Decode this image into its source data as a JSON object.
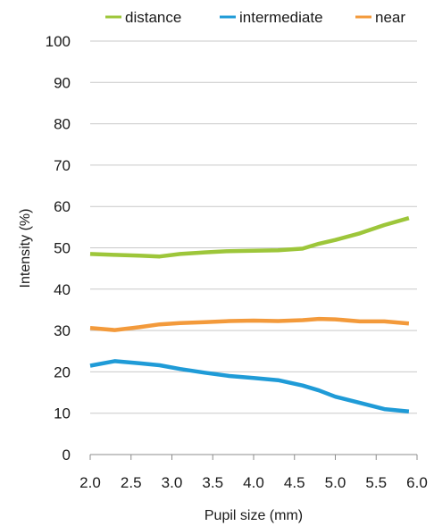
{
  "chart_data": {
    "type": "line",
    "title": "",
    "xlabel": "Pupil size (mm)",
    "ylabel": "Intensity (%)",
    "xlim": [
      2.0,
      6.0
    ],
    "ylim": [
      0,
      100
    ],
    "x_ticks": [
      "2.0",
      "2.5",
      "3.0",
      "3.5",
      "4.0",
      "4.5",
      "5.0",
      "5.5",
      "6.0"
    ],
    "y_ticks": [
      "0",
      "10",
      "20",
      "30",
      "40",
      "50",
      "60",
      "70",
      "80",
      "90",
      "100"
    ],
    "grid": "horizontal",
    "legend_position": "top",
    "series": [
      {
        "name": "distance",
        "color": "#9dc63a",
        "x": [
          2.0,
          2.3,
          2.6,
          2.85,
          3.1,
          3.4,
          3.7,
          4.0,
          4.3,
          4.6,
          4.8,
          5.0,
          5.3,
          5.6,
          5.9
        ],
        "y": [
          48.5,
          48.3,
          48.1,
          47.9,
          48.5,
          48.9,
          49.2,
          49.3,
          49.4,
          49.8,
          51.0,
          51.9,
          53.5,
          55.5,
          57.2
        ]
      },
      {
        "name": "intermediate",
        "color": "#1f9bd7",
        "x": [
          2.0,
          2.3,
          2.6,
          2.85,
          3.1,
          3.4,
          3.7,
          4.0,
          4.3,
          4.6,
          4.8,
          5.0,
          5.3,
          5.6,
          5.9
        ],
        "y": [
          21.5,
          22.6,
          22.1,
          21.6,
          20.7,
          19.8,
          19.0,
          18.5,
          18.0,
          16.7,
          15.5,
          14.0,
          12.5,
          11.0,
          10.4
        ]
      },
      {
        "name": "near",
        "color": "#f39a3b",
        "x": [
          2.0,
          2.3,
          2.6,
          2.85,
          3.1,
          3.4,
          3.7,
          4.0,
          4.3,
          4.6,
          4.8,
          5.0,
          5.3,
          5.6,
          5.9
        ],
        "y": [
          30.6,
          30.1,
          30.8,
          31.5,
          31.8,
          32.0,
          32.3,
          32.4,
          32.3,
          32.5,
          32.8,
          32.7,
          32.2,
          32.2,
          31.7
        ]
      }
    ]
  }
}
